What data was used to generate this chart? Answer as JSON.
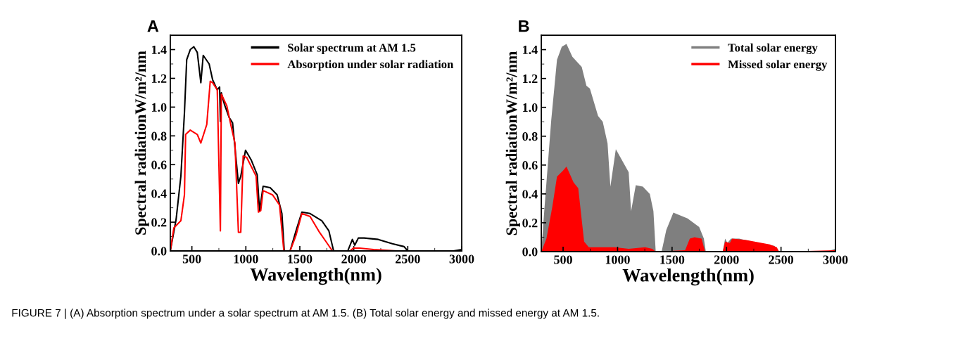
{
  "chart_data": [
    {
      "type": "line",
      "title": "A",
      "xlabel": "Wavelength(nm)",
      "ylabel": "Spectral radiationW/m²/nm",
      "xlim": [
        300,
        3000
      ],
      "xticks": [
        500,
        1000,
        1500,
        2000,
        2500,
        3000
      ],
      "ylim": [
        0,
        1.5
      ],
      "yticks": [
        {
          "value": 0,
          "label": "0.0"
        },
        {
          "value": 0.2,
          "label": "0.2"
        },
        {
          "value": 0.4,
          "label": "0.4"
        },
        {
          "value": 0.6,
          "label": "0.6"
        },
        {
          "value": 0.8,
          "label": "0.8"
        },
        {
          "value": 1,
          "label": "1.0"
        },
        {
          "value": 1.2,
          "label": "1.2"
        },
        {
          "value": 1.4,
          "label": "1.4"
        }
      ],
      "legend": "top right",
      "grid": false,
      "series": [
        {
          "name": "Solar spectrum at AM 1.5",
          "color": "#000000",
          "x": [
            300,
            354,
            398,
            431,
            452,
            485,
            518,
            550,
            583,
            605,
            660,
            692,
            735,
            757,
            764,
            773,
            801,
            844,
            877,
            931,
            953,
            997,
            1051,
            1105,
            1127,
            1160,
            1225,
            1290,
            1334,
            1356,
            1410,
            1465,
            1519,
            1595,
            1704,
            1769,
            1813,
            1944,
            1987,
            2009,
            2042,
            2096,
            2227,
            2357,
            2466,
            2499,
            2923,
            3000
          ],
          "values": [
            0,
            0.22,
            0.52,
            0.96,
            1.33,
            1.4,
            1.42,
            1.38,
            1.17,
            1.36,
            1.3,
            1.19,
            1.12,
            1.14,
            0.9,
            1.1,
            1.02,
            0.93,
            0.89,
            0.47,
            0.52,
            0.7,
            0.63,
            0.53,
            0.28,
            0.45,
            0.44,
            0.39,
            0.26,
            0,
            0,
            0.14,
            0.27,
            0.26,
            0.21,
            0.14,
            0,
            0,
            0.08,
            0.04,
            0.09,
            0.09,
            0.08,
            0.05,
            0.03,
            0,
            0,
            0.01
          ]
        },
        {
          "name": "Absorption under solar radiation",
          "color": "#ff0000",
          "x": [
            300,
            333,
            398,
            431,
            442,
            485,
            550,
            583,
            638,
            670,
            692,
            735,
            764,
            773,
            823,
            860,
            899,
            931,
            953,
            975,
            1008,
            1095,
            1116,
            1138,
            1160,
            1247,
            1312,
            1352,
            1410,
            1465,
            1519,
            1595,
            1682,
            1747,
            1802,
            1965,
            1998,
            2053,
            2183,
            2401,
            3000
          ],
          "values": [
            0,
            0.16,
            0.21,
            0.39,
            0.81,
            0.84,
            0.81,
            0.75,
            0.88,
            1.18,
            1.17,
            1.12,
            0.14,
            1.09,
            1.01,
            0.88,
            0.75,
            0.13,
            0.13,
            0.66,
            0.65,
            0.52,
            0.27,
            0.28,
            0.42,
            0.39,
            0.32,
            0,
            0,
            0.11,
            0.26,
            0.24,
            0.13,
            0.06,
            0,
            0,
            0.02,
            0.02,
            0.01,
            0,
            0
          ]
        }
      ]
    },
    {
      "type": "area",
      "title": "B",
      "xlabel": "Wavelength(nm)",
      "ylabel": "Spectral radiationW/m²/nm",
      "xlim": [
        300,
        3000
      ],
      "xticks": [
        500,
        1000,
        1500,
        2000,
        2500,
        3000
      ],
      "ylim": [
        0,
        1.5
      ],
      "yticks": [
        {
          "value": 0,
          "label": "0.0"
        },
        {
          "value": 0.2,
          "label": "0.2"
        },
        {
          "value": 0.4,
          "label": "0.4"
        },
        {
          "value": 0.6,
          "label": "0.6"
        },
        {
          "value": 0.8,
          "label": "0.8"
        },
        {
          "value": 1,
          "label": "1.0"
        },
        {
          "value": 1.2,
          "label": "1.2"
        },
        {
          "value": 1.4,
          "label": "1.4"
        }
      ],
      "legend": "top right",
      "grid": false,
      "annotations": [
        "FIGURE 7 | (A) Absorption spectrum under a solar spectrum at AM 1.5. (B) Total solar energy and missed energy at AM 1.5."
      ],
      "series": [
        {
          "name": "Total solar energy",
          "color": "#7f7f7f",
          "x": [
            300,
            326,
            391,
            444,
            488,
            531,
            585,
            671,
            714,
            746,
            821,
            864,
            908,
            934,
            984,
            1102,
            1124,
            1167,
            1232,
            1296,
            1329,
            1350,
            1404,
            1447,
            1512,
            1642,
            1749,
            1792,
            1810,
            1965,
            1987,
            2008,
            2041,
            2116,
            2289,
            2440,
            2472,
            2914,
            3000
          ],
          "values": [
            0,
            0.27,
            0.91,
            1.33,
            1.42,
            1.44,
            1.35,
            1.28,
            1.15,
            1.13,
            0.94,
            0.9,
            0.75,
            0.45,
            0.71,
            0.55,
            0.28,
            0.46,
            0.45,
            0.4,
            0.28,
            0,
            0,
            0.15,
            0.27,
            0.23,
            0.17,
            0.09,
            0,
            0,
            0.09,
            0.06,
            0.09,
            0.09,
            0.06,
            0.04,
            0,
            0,
            0.02
          ]
        },
        {
          "name": "Missed solar energy",
          "color": "#ff0000",
          "x": [
            300,
            347,
            401,
            444,
            498,
            531,
            596,
            639,
            693,
            736,
            973,
            1102,
            1253,
            1318,
            1350,
            1620,
            1663,
            1706,
            1771,
            1803,
            1965,
            1987,
            2030,
            2052,
            2181,
            2397,
            2461,
            2483,
            3000
          ],
          "values": [
            0,
            0.09,
            0.31,
            0.52,
            0.56,
            0.59,
            0.48,
            0.44,
            0.07,
            0.03,
            0.03,
            0.02,
            0.03,
            0.02,
            0,
            0.01,
            0.09,
            0.1,
            0.09,
            0,
            0,
            0.07,
            0.06,
            0.09,
            0.08,
            0.05,
            0.03,
            0,
            0.01
          ]
        }
      ]
    }
  ]
}
